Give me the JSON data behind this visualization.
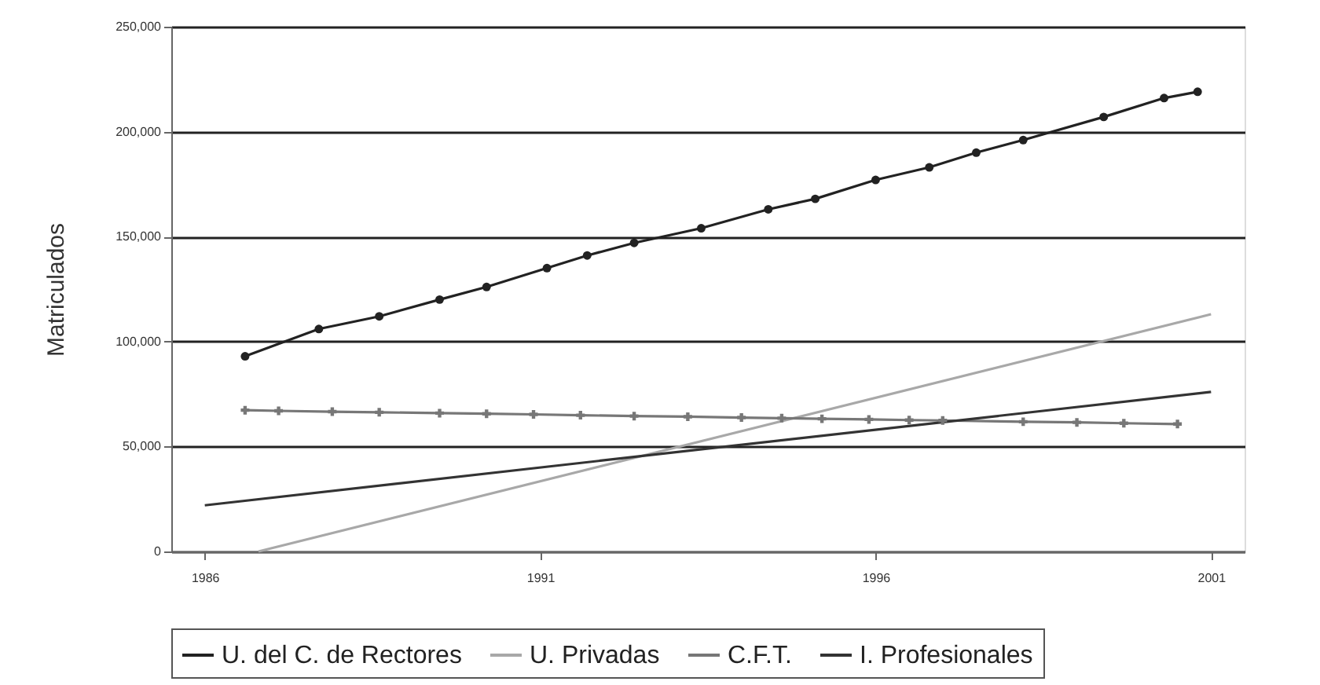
{
  "chart_data": {
    "type": "line",
    "ylabel": "Matriculados",
    "xlim": [
      1985.5,
      2001.5
    ],
    "xticks": [
      1986,
      1991,
      1996,
      2001
    ],
    "ylim": [
      0,
      250000
    ],
    "yticks": [
      {
        "value": 0,
        "label": "0"
      },
      {
        "value": 50000,
        "label": "50,000"
      },
      {
        "value": 100000,
        "label": "100,000"
      },
      {
        "value": 150000,
        "label": "150,000"
      },
      {
        "value": 200000,
        "label": "200,000"
      },
      {
        "value": 250000,
        "label": "250,000"
      }
    ],
    "grid": "y",
    "legend": "bottom",
    "series": [
      {
        "name": "U. del C. de Rectores",
        "color": "#222222",
        "marker": "circle",
        "x": [
          1986.6,
          1987.7,
          1988.6,
          1989.5,
          1990.2,
          1991.1,
          1991.7,
          1992.4,
          1993.4,
          1994.4,
          1995.1,
          1996.0,
          1996.8,
          1997.5,
          1998.2,
          1999.4,
          2000.3,
          2000.8
        ],
        "values": [
          93000,
          106000,
          112000,
          120000,
          126000,
          135000,
          141000,
          147000,
          154000,
          163000,
          168000,
          177000,
          183000,
          190000,
          196000,
          207000,
          216000,
          219000
        ]
      },
      {
        "name": "U. Privadas",
        "color": "#a8a8a8",
        "marker": "none",
        "x": [
          1986.8,
          2001
        ],
        "values": [
          0,
          113000
        ]
      },
      {
        "name": "C.F.T.",
        "color": "#777777",
        "marker": "cross",
        "x": [
          1986.6,
          1987.1,
          1987.9,
          1988.6,
          1989.5,
          1990.2,
          1990.9,
          1991.6,
          1992.4,
          1993.2,
          1994.0,
          1994.6,
          1995.2,
          1995.9,
          1996.5,
          1997.0,
          1998.2,
          1999.0,
          1999.7,
          2000.5
        ],
        "values": [
          67300,
          67000,
          66600,
          66300,
          65900,
          65600,
          65300,
          64900,
          64500,
          64200,
          63800,
          63500,
          63200,
          62900,
          62600,
          62400,
          61800,
          61500,
          61100,
          60700
        ]
      },
      {
        "name": "I. Profesionales",
        "color": "#333333",
        "marker": "none",
        "x": [
          1986,
          2001
        ],
        "values": [
          22000,
          76000
        ]
      }
    ]
  }
}
